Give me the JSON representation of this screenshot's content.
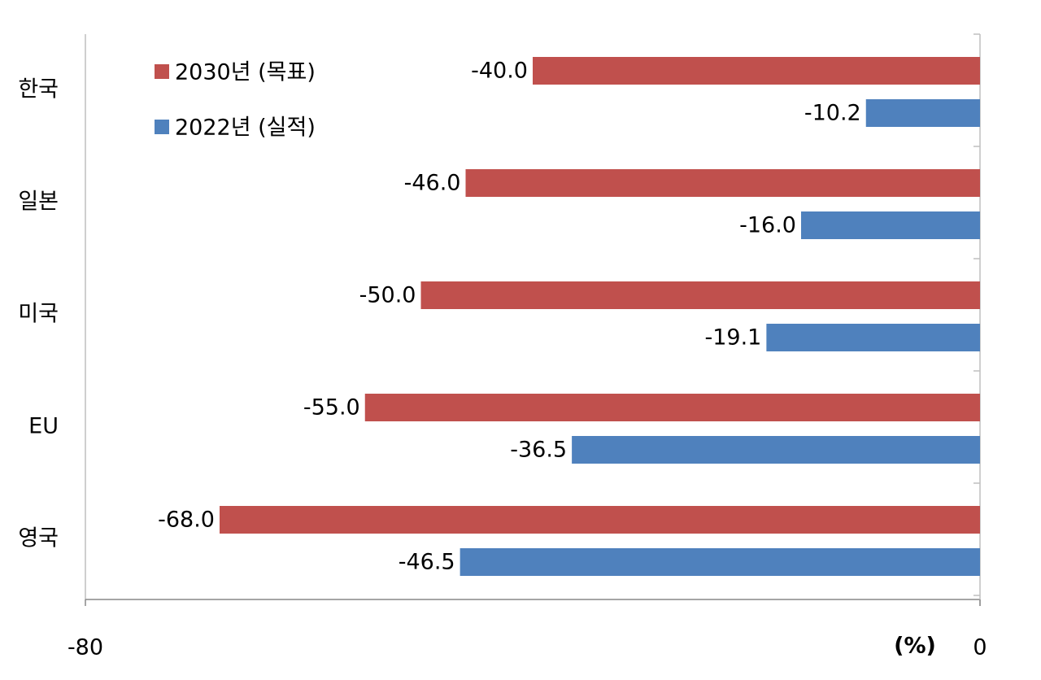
{
  "chart_data": {
    "type": "hbar",
    "categories": [
      "한국",
      "일본",
      "미국",
      "EU",
      "영국"
    ],
    "series": [
      {
        "name": "2030년 (목표)",
        "color": "#c0504d",
        "values": [
          -40.0,
          -46.0,
          -50.0,
          -55.0,
          -68.0
        ],
        "value_labels": [
          "-40.0",
          "-46.0",
          "-50.0",
          "-55.0",
          "-68.0"
        ]
      },
      {
        "name": "2022년 (실적)",
        "color": "#4f81bd",
        "values": [
          -10.2,
          -16.0,
          -19.1,
          -36.5,
          -46.5
        ],
        "value_labels": [
          "-10.2",
          "-16.0",
          "-19.1",
          "-36.5",
          "-46.5"
        ]
      }
    ],
    "xlim": [
      -80,
      0
    ],
    "xticks": [
      -80,
      0
    ],
    "x_unit_label": "(%)",
    "legend": "upper-left"
  }
}
